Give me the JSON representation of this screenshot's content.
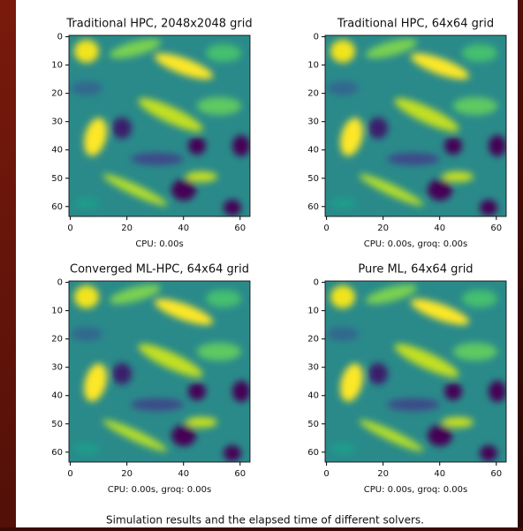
{
  "panels": [
    {
      "title": "Traditional HPC, 2048x2048 grid",
      "xlabel": "CPU: 0.00s",
      "xticks": [
        0,
        20,
        40,
        60
      ],
      "yticks": [
        0,
        10,
        20,
        30,
        40,
        50,
        60
      ]
    },
    {
      "title": "Traditional HPC, 64x64 grid",
      "xlabel": "CPU: 0.00s, groq: 0.00s",
      "xticks": [
        0,
        20,
        40,
        60
      ],
      "yticks": [
        0,
        10,
        20,
        30,
        40,
        50,
        60
      ]
    },
    {
      "title": "Converged ML-HPC, 64x64 grid",
      "xlabel": "CPU: 0.00s, groq: 0.00s",
      "xticks": [
        0,
        20,
        40,
        60
      ],
      "yticks": [
        0,
        10,
        20,
        30,
        40,
        50,
        60
      ]
    },
    {
      "title": "Pure ML, 64x64 grid",
      "xlabel": "CPU: 0.00s, groq: 0.00s",
      "xticks": [
        0,
        20,
        40,
        60
      ],
      "yticks": [
        0,
        10,
        20,
        30,
        40,
        50,
        60
      ]
    }
  ],
  "caption": "Simulation results and the elapsed time of different solvers."
}
